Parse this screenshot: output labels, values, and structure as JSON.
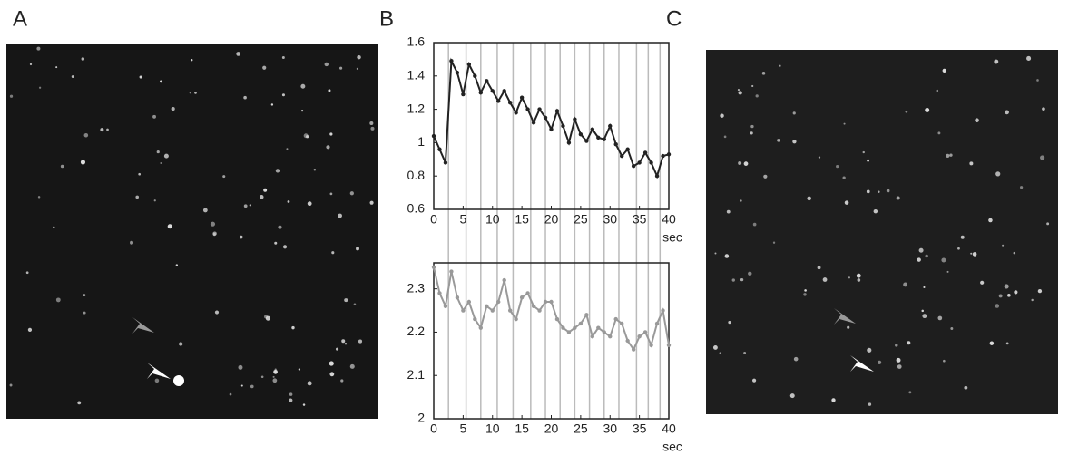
{
  "panels": {
    "a": "A",
    "b": "B",
    "c": "C"
  },
  "chart_data": [
    {
      "type": "line",
      "x_label": "sec",
      "x": [
        0,
        1,
        2,
        3,
        4,
        5,
        6,
        7,
        8,
        9,
        10,
        11,
        12,
        13,
        14,
        15,
        16,
        17,
        18,
        19,
        20,
        21,
        22,
        23,
        24,
        25,
        26,
        27,
        28,
        29,
        30,
        31,
        32,
        33,
        34,
        35,
        36,
        37,
        38,
        39,
        40
      ],
      "series": [
        {
          "color": "#222222",
          "values": [
            1.04,
            0.96,
            0.88,
            1.49,
            1.42,
            1.29,
            1.47,
            1.4,
            1.3,
            1.37,
            1.31,
            1.25,
            1.31,
            1.24,
            1.18,
            1.27,
            1.2,
            1.12,
            1.2,
            1.15,
            1.08,
            1.19,
            1.1,
            1.0,
            1.14,
            1.05,
            1.01,
            1.08,
            1.03,
            1.02,
            1.1,
            0.99,
            0.92,
            0.96,
            0.86,
            0.88,
            0.94,
            0.88,
            0.8,
            0.92,
            0.93
          ]
        }
      ],
      "xlim": [
        0,
        40
      ],
      "xticks": [
        0,
        5,
        10,
        15,
        20,
        25,
        30,
        35,
        40
      ],
      "ylim": [
        0.6,
        1.6
      ],
      "yticks": [
        0.6,
        0.8,
        1,
        1.2,
        1.4,
        1.6
      ],
      "markers": [
        2.5,
        5.5,
        8,
        10.8,
        13.5,
        16.5,
        19,
        21.5,
        24,
        26.5,
        29,
        31.5,
        34.5,
        36.5,
        38.5
      ],
      "marker_color": "#bbbbbb"
    },
    {
      "type": "line",
      "x_label": "sec",
      "x": [
        0,
        1,
        2,
        3,
        4,
        5,
        6,
        7,
        8,
        9,
        10,
        11,
        12,
        13,
        14,
        15,
        16,
        17,
        18,
        19,
        20,
        21,
        22,
        23,
        24,
        25,
        26,
        27,
        28,
        29,
        30,
        31,
        32,
        33,
        34,
        35,
        36,
        37,
        38,
        39,
        40
      ],
      "series": [
        {
          "color": "#999999",
          "values": [
            2.35,
            2.29,
            2.26,
            2.34,
            2.28,
            2.25,
            2.27,
            2.23,
            2.21,
            2.26,
            2.25,
            2.27,
            2.32,
            2.25,
            2.23,
            2.28,
            2.29,
            2.26,
            2.25,
            2.27,
            2.27,
            2.23,
            2.21,
            2.2,
            2.21,
            2.22,
            2.24,
            2.19,
            2.21,
            2.2,
            2.19,
            2.23,
            2.22,
            2.18,
            2.16,
            2.19,
            2.2,
            2.17,
            2.22,
            2.25,
            2.17
          ]
        }
      ],
      "xlim": [
        0,
        40
      ],
      "xticks": [
        0,
        5,
        10,
        15,
        20,
        25,
        30,
        35,
        40
      ],
      "ylim": [
        2,
        2.36
      ],
      "yticks": [
        2,
        2.1,
        2.2,
        2.3
      ]
    }
  ]
}
